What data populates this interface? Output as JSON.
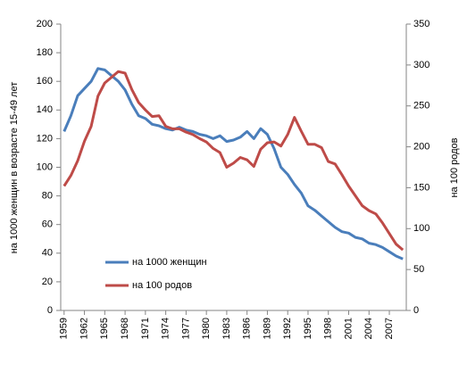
{
  "chart_data": {
    "type": "line",
    "y_label": "на 1000 женщин в возрасте 15-49 лет",
    "y2_label": "на 100 родов",
    "x": [
      1959,
      1960,
      1961,
      1962,
      1963,
      1964,
      1965,
      1966,
      1967,
      1968,
      1969,
      1970,
      1971,
      1972,
      1973,
      1974,
      1975,
      1976,
      1977,
      1978,
      1979,
      1980,
      1981,
      1982,
      1983,
      1984,
      1985,
      1986,
      1987,
      1988,
      1989,
      1990,
      1991,
      1992,
      1993,
      1994,
      1995,
      1996,
      1997,
      1998,
      1999,
      2000,
      2001,
      2002,
      2003,
      2004,
      2005,
      2006,
      2007,
      2008,
      2009
    ],
    "xlim": [
      1958.5,
      2009.5
    ],
    "xticks": [
      1959,
      1962,
      1965,
      1968,
      1971,
      1974,
      1977,
      1980,
      1983,
      1986,
      1989,
      1992,
      1995,
      1998,
      2001,
      2004,
      2007
    ],
    "ylim": [
      0,
      200
    ],
    "yticks": [
      0,
      20,
      40,
      60,
      80,
      100,
      120,
      140,
      160,
      180,
      200
    ],
    "y2lim": [
      0,
      350
    ],
    "y2ticks": [
      0,
      50,
      100,
      150,
      200,
      250,
      300,
      350
    ],
    "legend": "center-left",
    "series": [
      {
        "name": "на 1000 женщин",
        "color": "#4a7ebb",
        "axis": "y",
        "values": [
          125,
          136,
          150,
          155,
          160,
          169,
          168,
          164,
          160,
          154,
          144,
          136,
          134,
          130,
          129,
          127,
          126,
          128,
          126,
          125,
          123,
          122,
          120,
          122,
          118,
          119,
          121,
          125,
          120,
          127,
          123,
          113,
          100,
          95,
          88,
          82,
          73,
          70,
          66,
          62,
          58,
          55,
          54,
          51,
          50,
          47,
          46,
          44,
          41,
          38,
          36
        ]
      },
      {
        "name": "на 100 родов",
        "color": "#be4b48",
        "axis": "y2",
        "values": [
          152,
          165,
          183,
          207,
          225,
          262,
          278,
          285,
          292,
          290,
          270,
          254,
          245,
          237,
          238,
          225,
          222,
          222,
          218,
          215,
          210,
          206,
          198,
          193,
          175,
          180,
          187,
          184,
          176,
          197,
          205,
          206,
          201,
          215,
          236,
          219,
          203,
          203,
          199,
          182,
          179,
          166,
          152,
          140,
          128,
          122,
          118,
          107,
          94,
          81,
          74
        ]
      }
    ]
  }
}
